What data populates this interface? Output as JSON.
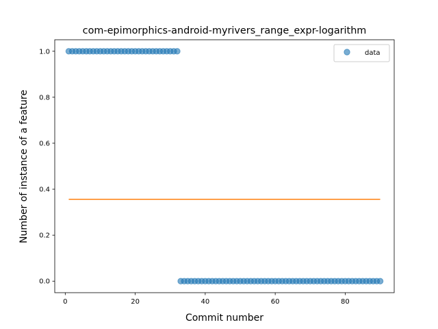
{
  "chart_data": {
    "type": "scatter",
    "title": "com-epimorphics-android-myrivers_range_expr-logarithm",
    "xlabel": "Commit number",
    "ylabel": "Number of instance of a feature",
    "xlim": [
      -3,
      94
    ],
    "ylim": [
      -0.05,
      1.05
    ],
    "xticks": [
      0,
      20,
      40,
      60,
      80
    ],
    "yticks": [
      0.0,
      0.2,
      0.4,
      0.6,
      0.8,
      1.0
    ],
    "xtick_labels": [
      "0",
      "20",
      "40",
      "60",
      "80"
    ],
    "ytick_labels": [
      "0.0",
      "0.2",
      "0.4",
      "0.6",
      "0.8",
      "1.0"
    ],
    "grid": false,
    "legend": {
      "position": "top-right",
      "entries": [
        "data"
      ]
    },
    "series": [
      {
        "name": "data",
        "kind": "scatter",
        "color": "#1f77b4",
        "segments": [
          {
            "x_start": 1,
            "x_end": 32,
            "y": 1
          },
          {
            "x_start": 33,
            "x_end": 90,
            "y": 0
          }
        ]
      },
      {
        "kind": "line",
        "color": "#ff7f0e",
        "x": [
          1,
          90
        ],
        "y": [
          0.356,
          0.356
        ]
      }
    ]
  }
}
